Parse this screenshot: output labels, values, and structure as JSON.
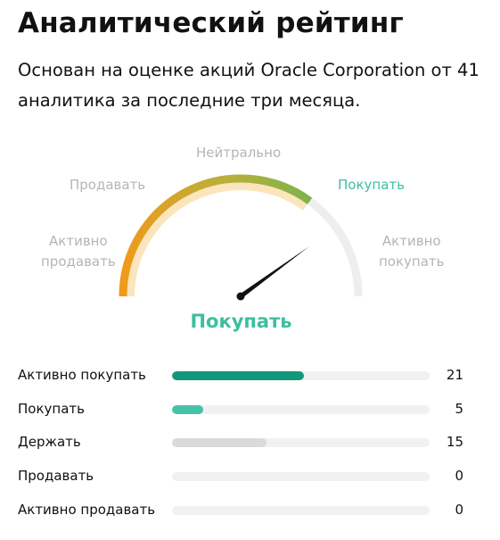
{
  "header": {
    "title": "Аналитический рейтинг",
    "subtitle": "Основан на оценке акций Oracle Corporation от 41 аналитика за последние три месяца."
  },
  "gauge": {
    "labels": {
      "strong_sell": [
        "Активно",
        "продавать"
      ],
      "sell": "Продавать",
      "neutral": "Нейтрально",
      "buy": "Покупать",
      "strong_buy": [
        "Активно",
        "покупать"
      ]
    },
    "active_label": "buy",
    "filled_fraction": 0.7,
    "needle_fraction": 0.8,
    "colors": {
      "track": "#eeeeee",
      "inner_track": "#fbe5bd",
      "gradient_start": "#ef9a1a",
      "gradient_mid": "#b9b03a",
      "gradient_end": "#7fb24a",
      "active_text": "#3dbf9f",
      "inactive_text": "#b5b5b5",
      "needle": "#111111"
    }
  },
  "verdict": "Покупать",
  "breakdown": {
    "max": 41,
    "rows": [
      {
        "label": "Активно покупать",
        "count": "21",
        "value": 21,
        "color": "#13977a"
      },
      {
        "label": "Покупать",
        "count": "5",
        "value": 5,
        "color": "#47c1a8"
      },
      {
        "label": "Держать",
        "count": "15",
        "value": 15,
        "color": "#dadada"
      },
      {
        "label": "Продавать",
        "count": "0",
        "value": 0,
        "color": "#e0e0e0"
      },
      {
        "label": "Активно продавать",
        "count": "0",
        "value": 0,
        "color": "#e0e0e0"
      }
    ]
  }
}
